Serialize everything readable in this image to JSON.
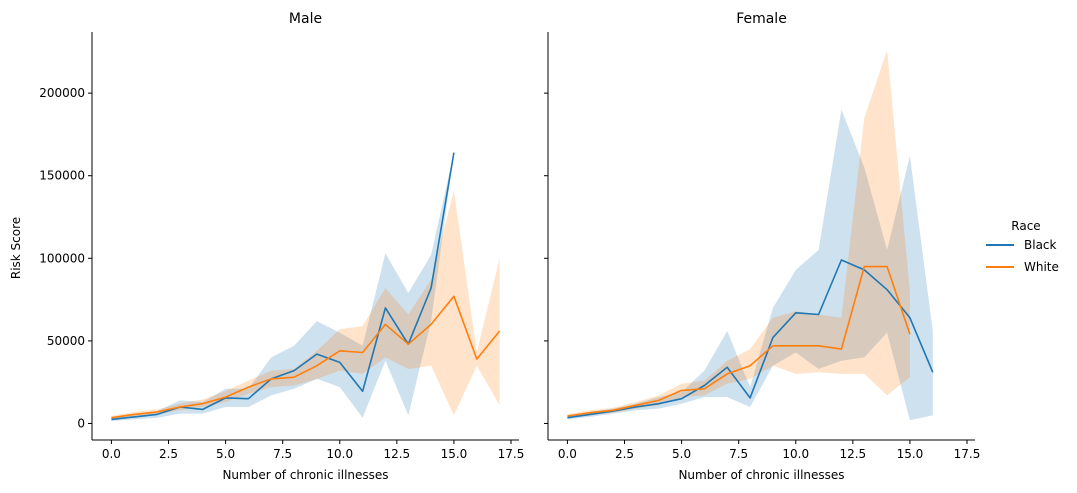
{
  "chart_data": {
    "type": "line",
    "shared_ylabel": "Risk Score",
    "legend": {
      "title": "Race",
      "placement": "right",
      "entries": [
        {
          "name": "Black",
          "color": "#1f77b4"
        },
        {
          "name": "White",
          "color": "#ff7f0e"
        }
      ]
    },
    "panels": [
      {
        "title": "Male",
        "xlabel": "Number of chronic illnesses",
        "ylabel": "Risk Score",
        "xlim": [
          -0.85,
          17.85
        ],
        "ylim": [
          -10000,
          237000
        ],
        "xticks": [
          0.0,
          2.5,
          5.0,
          7.5,
          10.0,
          12.5,
          15.0,
          17.5
        ],
        "xtick_labels": [
          "0.0",
          "2.5",
          "5.0",
          "7.5",
          "10.0",
          "12.5",
          "15.0",
          "17.5"
        ],
        "yticks": [
          0,
          50000,
          100000,
          150000,
          200000
        ],
        "ytick_labels": [
          "0",
          "50000",
          "100000",
          "150000",
          "200000"
        ],
        "series": [
          {
            "name": "Black",
            "x": [
              0,
              1,
              2,
              3,
              4,
              5,
              6,
              7,
              8,
              9,
              10,
              11,
              12,
              13,
              14,
              15
            ],
            "y": [
              2500,
              4000,
              5500,
              10000,
              8500,
              15500,
              15000,
              27000,
              32000,
              42000,
              37000,
              19500,
              70000,
              48000,
              82000,
              164000
            ],
            "ci_low": [
              1500,
              2500,
              3500,
              6000,
              6000,
              10000,
              10000,
              17000,
              21000,
              27000,
              22000,
              3500,
              38000,
              5000,
              62000,
              164000
            ],
            "ci_high": [
              3500,
              5500,
              7500,
              14000,
              13000,
              21000,
              21000,
              40000,
              47000,
              62000,
              55000,
              47000,
              103000,
              79000,
              102000,
              164000
            ]
          },
          {
            "name": "White",
            "x": [
              0,
              1,
              2,
              3,
              4,
              5,
              6,
              7,
              8,
              9,
              10,
              11,
              12,
              13,
              14,
              15,
              16,
              17
            ],
            "y": [
              3500,
              5500,
              7000,
              10000,
              12000,
              16000,
              22000,
              27000,
              28000,
              35000,
              44000,
              43000,
              60000,
              48000,
              60000,
              77000,
              39000,
              56000
            ],
            "ci_low": [
              2500,
              4000,
              5500,
              8000,
              10000,
              13000,
              18000,
              22000,
              23000,
              27000,
              32000,
              30000,
              40000,
              33000,
              35000,
              5000,
              35000,
              11000
            ],
            "ci_high": [
              4500,
              7000,
              8500,
              12000,
              14500,
              19500,
              26000,
              32000,
              33000,
              44000,
              57000,
              59000,
              82000,
              66000,
              87000,
              141000,
              43000,
              100000
            ]
          }
        ]
      },
      {
        "title": "Female",
        "xlabel": "Number of chronic illnesses",
        "ylabel": "",
        "xlim": [
          -0.85,
          17.85
        ],
        "ylim": [
          -10000,
          237000
        ],
        "xticks": [
          0.0,
          2.5,
          5.0,
          7.5,
          10.0,
          12.5,
          15.0,
          17.5
        ],
        "xtick_labels": [
          "0.0",
          "2.5",
          "5.0",
          "7.5",
          "10.0",
          "12.5",
          "15.0",
          "17.5"
        ],
        "yticks": [
          0,
          50000,
          100000,
          150000,
          200000
        ],
        "ytick_labels": [
          "",
          "",
          "",
          "",
          ""
        ],
        "series": [
          {
            "name": "Black",
            "x": [
              0,
              1,
              2,
              3,
              4,
              5,
              6,
              7,
              8,
              9,
              10,
              11,
              12,
              13,
              14,
              15,
              16
            ],
            "y": [
              3500,
              5500,
              7500,
              10000,
              12000,
              15000,
              23000,
              34000,
              15500,
              52000,
              67000,
              66000,
              99000,
              93000,
              81000,
              64000,
              31000
            ],
            "ci_low": [
              2500,
              4000,
              6000,
              8000,
              9000,
              12000,
              16000,
              16000,
              10000,
              35000,
              43000,
              33000,
              38000,
              40000,
              55000,
              2000,
              5000
            ],
            "ci_high": [
              4500,
              7000,
              9000,
              12000,
              16000,
              19000,
              32000,
              56000,
              22000,
              70000,
              93000,
              105000,
              190000,
              155000,
              105000,
              162000,
              56000
            ]
          },
          {
            "name": "White",
            "x": [
              0,
              1,
              2,
              3,
              4,
              5,
              6,
              7,
              8,
              9,
              10,
              11,
              12,
              13,
              14,
              15
            ],
            "y": [
              4500,
              6500,
              8000,
              11000,
              14000,
              20000,
              21000,
              30000,
              35000,
              47000,
              47000,
              47000,
              45000,
              95000,
              95000,
              54000
            ],
            "ci_low": [
              3500,
              5000,
              6500,
              9000,
              11000,
              16000,
              17000,
              24000,
              27000,
              35000,
              30000,
              31000,
              30000,
              30000,
              17000,
              28000
            ],
            "ci_high": [
              5500,
              8000,
              9500,
              13000,
              17000,
              24000,
              26000,
              38000,
              45000,
              64000,
              68000,
              66000,
              64000,
              185000,
              226000,
              80000
            ]
          }
        ]
      }
    ]
  }
}
